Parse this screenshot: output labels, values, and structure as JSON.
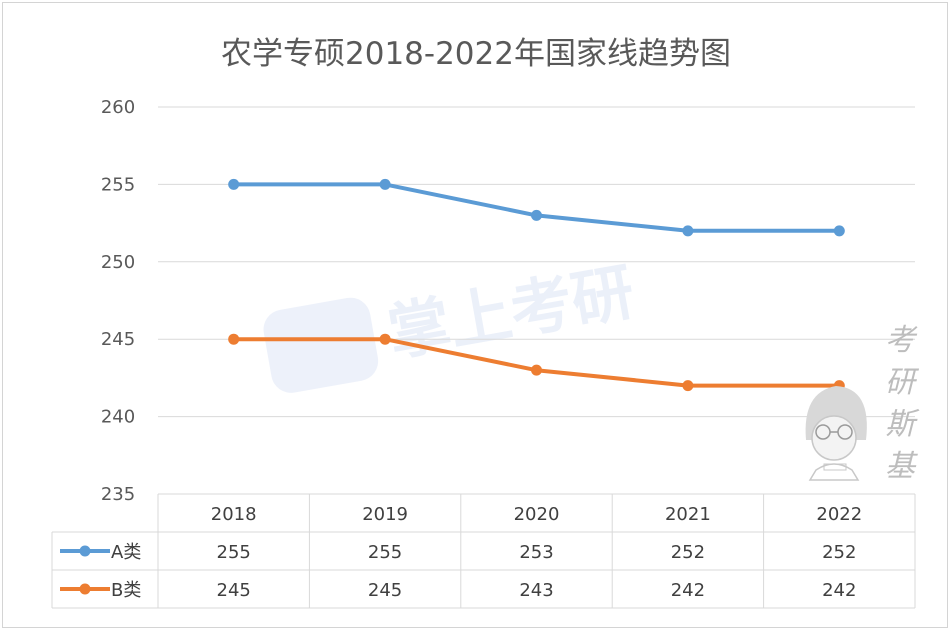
{
  "chart_data": {
    "type": "line",
    "title": "农学专硕2018-2022年国家线趋势图",
    "categories": [
      "2018",
      "2019",
      "2020",
      "2021",
      "2022"
    ],
    "series": [
      {
        "name": "A类",
        "values": [
          255,
          255,
          253,
          252,
          252
        ],
        "color": "#5b9bd5"
      },
      {
        "name": "B类",
        "values": [
          245,
          245,
          243,
          242,
          242
        ],
        "color": "#ed7d31"
      }
    ],
    "ylim": [
      235,
      260
    ],
    "yticks": [
      "260",
      "255",
      "250",
      "245",
      "240",
      "235"
    ],
    "grid": true,
    "data_table": true
  },
  "watermark": {
    "text": "掌上考研"
  },
  "side_brand": {
    "chars": [
      "考",
      "研",
      "斯",
      "基"
    ]
  }
}
